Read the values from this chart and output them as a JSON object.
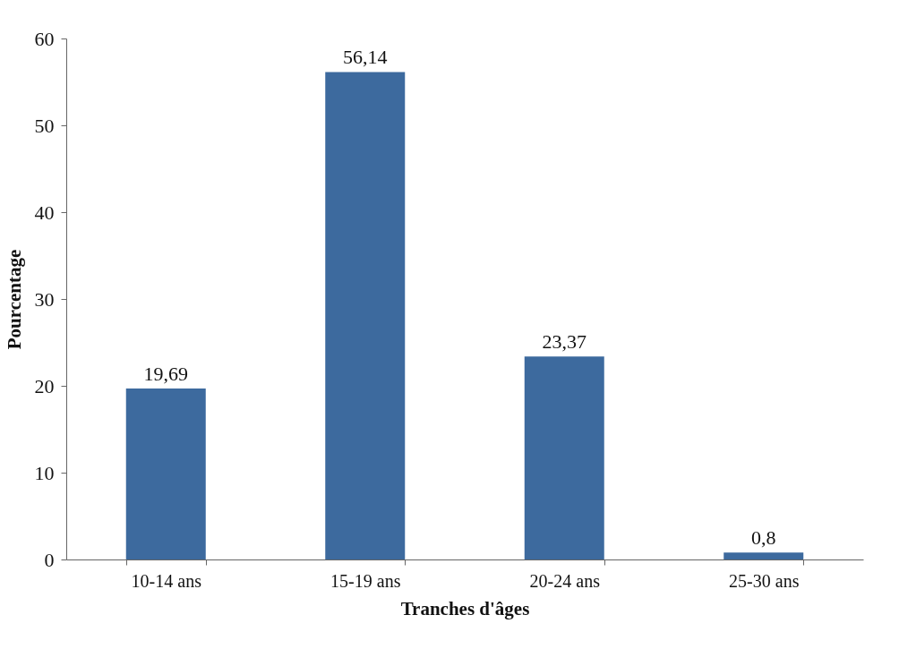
{
  "chart_data": {
    "type": "bar",
    "xlabel": "Tranches d'âges",
    "ylabel": "Pourcentage",
    "categories": [
      "10-14 ans",
      "15-19 ans",
      "20-24 ans",
      "25-30 ans"
    ],
    "values": [
      19.69,
      56.14,
      23.37,
      0.8
    ],
    "value_labels": [
      "19,69",
      "56,14",
      "23,37",
      "0,8"
    ],
    "color": "#3d6a9e",
    "ylim": [
      0,
      60
    ],
    "yticks": [
      0,
      10,
      20,
      30,
      40,
      50,
      60
    ],
    "grid": false
  }
}
